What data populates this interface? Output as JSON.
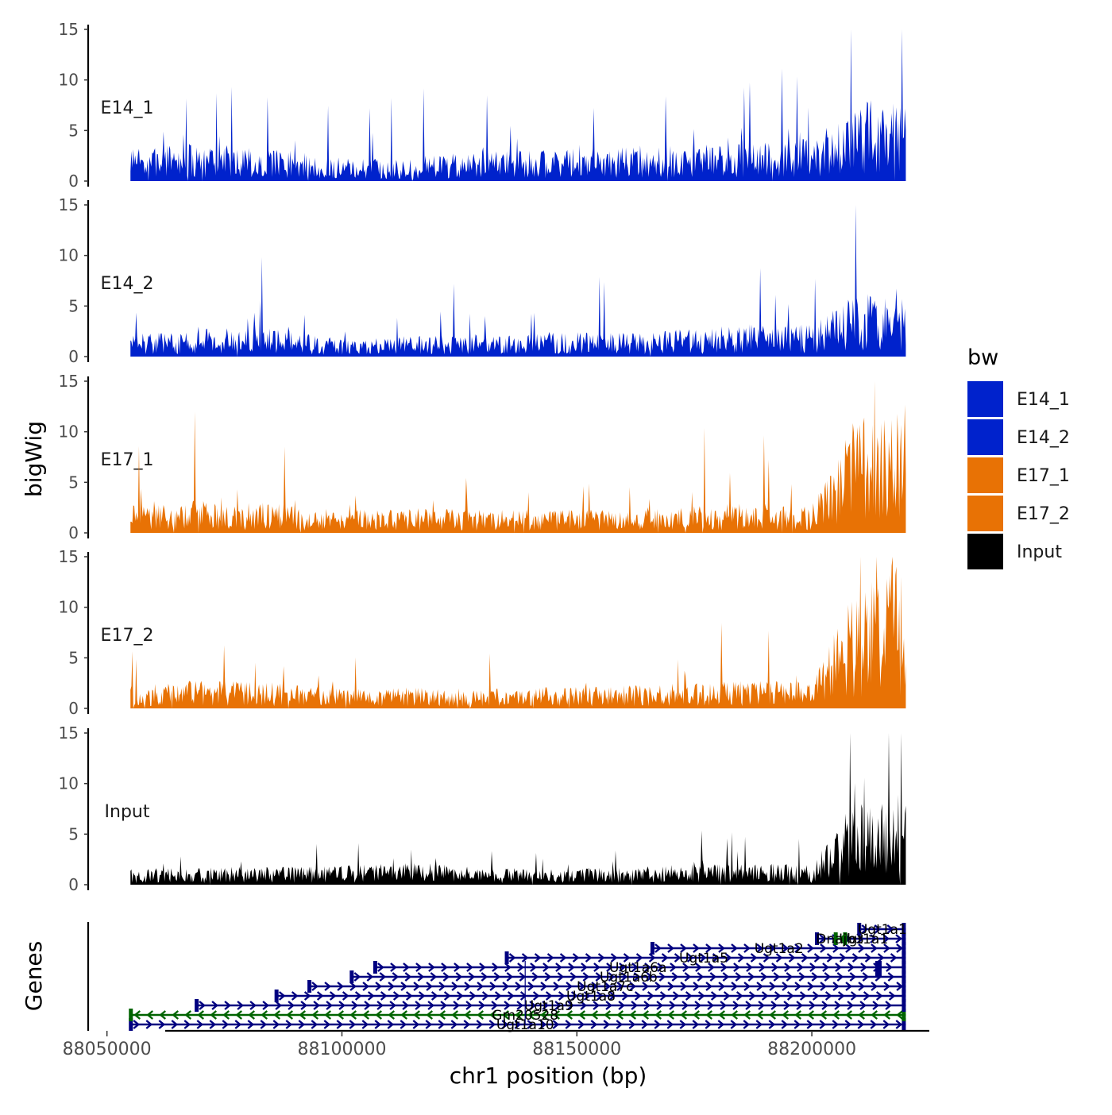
{
  "chart_data": {
    "type": "area",
    "chromosome": "chr1",
    "xlabel": "chr1 position (bp)",
    "ylabel": "bigWig",
    "genes_label": "Genes",
    "xlim": [
      88046000,
      88225000
    ],
    "x_ticks": [
      88050000,
      88100000,
      88150000,
      88200000
    ],
    "x_tick_labels": [
      "88050000",
      "88100000",
      "88150000",
      "88200000"
    ],
    "ylim": [
      0,
      15
    ],
    "y_ticks": [
      0,
      5,
      10,
      15
    ],
    "y_tick_labels": [
      "0",
      "5",
      "10",
      "15"
    ],
    "region": [
      88055000,
      88220000
    ],
    "legend": {
      "title": "bw",
      "position": "right",
      "entries": [
        {
          "label": "E14_1",
          "color": "#0022cc"
        },
        {
          "label": "E14_2",
          "color": "#0022cc"
        },
        {
          "label": "E17_1",
          "color": "#e87205"
        },
        {
          "label": "E17_2",
          "color": "#e87205"
        },
        {
          "label": "Input",
          "color": "#000000"
        }
      ]
    },
    "series": [
      {
        "name": "E14_1",
        "color": "#0022cc",
        "x": [
          88055000,
          88070000,
          88085000,
          88100000,
          88115000,
          88130000,
          88145000,
          88160000,
          88175000,
          88190000,
          88200000,
          88208000,
          88213000,
          88220000
        ],
        "values": [
          1.8,
          2.2,
          1.9,
          1.3,
          1.4,
          1.7,
          1.8,
          2.0,
          2.1,
          2.3,
          2.4,
          4.5,
          4.6,
          4.4
        ],
        "peaks": [
          [
            88062000,
            5.7
          ],
          [
            88090000,
            4.2
          ],
          [
            88130000,
            4.1
          ],
          [
            88185000,
            5.5
          ],
          [
            88195000,
            6.2
          ],
          [
            88210000,
            8.3
          ],
          [
            88218000,
            7.6
          ]
        ]
      },
      {
        "name": "E14_2",
        "color": "#0022cc",
        "x": [
          88055000,
          88070000,
          88085000,
          88100000,
          88115000,
          88130000,
          88145000,
          88160000,
          88175000,
          88190000,
          88200000,
          88208000,
          88213000,
          88220000
        ],
        "values": [
          1.2,
          1.6,
          1.6,
          1.0,
          1.2,
          1.3,
          1.4,
          1.4,
          1.6,
          1.9,
          1.8,
          3.3,
          3.6,
          3.4
        ],
        "peaks": [
          [
            88080000,
            4.5
          ],
          [
            88092000,
            4.5
          ],
          [
            88195000,
            6.2
          ],
          [
            88212000,
            7.4
          ],
          [
            88218000,
            7.0
          ]
        ]
      },
      {
        "name": "E17_1",
        "color": "#e87205",
        "x": [
          88055000,
          88070000,
          88085000,
          88100000,
          88115000,
          88130000,
          88145000,
          88160000,
          88175000,
          88190000,
          88200000,
          88208000,
          88213000,
          88220000
        ],
        "values": [
          1.6,
          1.9,
          1.7,
          1.3,
          1.4,
          1.3,
          1.3,
          1.4,
          1.6,
          1.7,
          1.6,
          6.2,
          7.0,
          7.5
        ],
        "peaks": [
          [
            88060000,
            3.5
          ],
          [
            88068000,
            3.4
          ],
          [
            88090000,
            3.4
          ],
          [
            88175000,
            3.5
          ],
          [
            88209000,
            10.0
          ],
          [
            88217000,
            11.9
          ]
        ]
      },
      {
        "name": "E17_2",
        "color": "#e87205",
        "x": [
          88055000,
          88070000,
          88085000,
          88100000,
          88115000,
          88130000,
          88145000,
          88160000,
          88175000,
          88190000,
          88200000,
          88208000,
          88213000,
          88220000
        ],
        "values": [
          1.3,
          1.6,
          1.5,
          1.1,
          1.2,
          1.1,
          1.2,
          1.3,
          1.5,
          1.6,
          1.5,
          6.6,
          7.4,
          8.2
        ],
        "peaks": [
          [
            88070000,
            3.9
          ],
          [
            88095000,
            3.8
          ],
          [
            88173000,
            5.2
          ],
          [
            88210000,
            10.7
          ],
          [
            88217000,
            15.0
          ]
        ]
      },
      {
        "name": "Input",
        "color": "#000000",
        "x": [
          88055000,
          88070000,
          88085000,
          88100000,
          88115000,
          88130000,
          88145000,
          88160000,
          88175000,
          88190000,
          88200000,
          88208000,
          88213000,
          88220000
        ],
        "values": [
          0.9,
          1.0,
          1.0,
          1.1,
          1.3,
          1.0,
          0.9,
          1.0,
          1.2,
          1.2,
          1.1,
          4.4,
          5.0,
          5.6
        ],
        "peaks": [
          [
            88072000,
            2.6
          ],
          [
            88120000,
            2.7
          ],
          [
            88175000,
            3.0
          ],
          [
            88212000,
            7.6
          ],
          [
            88219000,
            7.8
          ]
        ]
      }
    ],
    "genes": [
      {
        "name": "Ugt1a10",
        "start": 88055000,
        "end": 88220000,
        "strand": "+",
        "color": "#000080",
        "label_x": 88139000
      },
      {
        "name": "Gm20528",
        "start": 88055000,
        "end": 88220000,
        "strand": "-",
        "color": "#006400",
        "label_x": 88139000
      },
      {
        "name": "Ugt1a9",
        "start": 88069000,
        "end": 88220000,
        "strand": "+",
        "color": "#000080",
        "label_x": 88144000
      },
      {
        "name": "Ugt1a8",
        "start": 88086000,
        "end": 88220000,
        "strand": "+",
        "color": "#000080",
        "label_x": 88153000
      },
      {
        "name": "Ugt1a7c",
        "start": 88093000,
        "end": 88220000,
        "strand": "+",
        "color": "#000080",
        "label_x": 88156000
      },
      {
        "name": "Ugt1a6b",
        "start": 88102000,
        "end": 88220000,
        "strand": "+",
        "color": "#000080",
        "label_x": 88161000
      },
      {
        "name": "Ugt1a6a",
        "start": 88107000,
        "end": 88220000,
        "strand": "+",
        "color": "#000080",
        "label_x": 88163000
      },
      {
        "name": "Ugt1a5",
        "start": 88135000,
        "end": 88220000,
        "strand": "+",
        "color": "#000080",
        "label_x": 88177000
      },
      {
        "name": "Ugt1a2",
        "start": 88166000,
        "end": 88220000,
        "strand": "+",
        "color": "#000080",
        "label_x": 88193000
      },
      {
        "name": "Ugt1a1",
        "start": 88201000,
        "end": 88220000,
        "strand": "+",
        "color": "#000080",
        "label_x": 88211000
      },
      {
        "name": "Dnajb3",
        "start": 88205000,
        "end": 88207500,
        "strand": "-",
        "color": "#006400",
        "label_x": 88206000
      },
      {
        "name": "Ugt1a1",
        "start": 88210000,
        "end": 88220000,
        "strand": "+",
        "color": "#000080",
        "label_x": 88215000
      }
    ]
  }
}
